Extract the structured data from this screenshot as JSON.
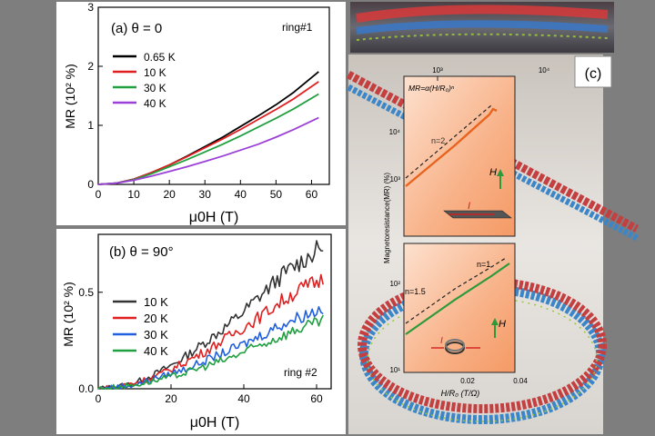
{
  "panel_a": {
    "label": "(a) θ = 0",
    "tag": "ring#1",
    "chart_data": {
      "type": "line",
      "xlabel": "μ0H (T)",
      "ylabel": "MR (10² %)",
      "xlim": [
        0,
        65
      ],
      "ylim": [
        0,
        3
      ],
      "x_ticks": [
        "0",
        "10",
        "20",
        "30",
        "40",
        "50",
        "60"
      ],
      "y_ticks": [
        "0",
        "1",
        "2",
        "3"
      ],
      "legend_position": "top-left",
      "series": [
        {
          "name": "0.65 K",
          "color": "#000000",
          "x": [
            0,
            5,
            10,
            15,
            20,
            25,
            30,
            35,
            40,
            45,
            50,
            55,
            62
          ],
          "y": [
            0,
            0.02,
            0.09,
            0.2,
            0.33,
            0.48,
            0.64,
            0.8,
            0.98,
            1.16,
            1.35,
            1.56,
            1.91
          ]
        },
        {
          "name": "10 K",
          "color": "#e02020",
          "x": [
            0,
            5,
            10,
            15,
            20,
            25,
            30,
            35,
            40,
            45,
            50,
            55,
            62
          ],
          "y": [
            0,
            0.02,
            0.09,
            0.2,
            0.33,
            0.47,
            0.62,
            0.77,
            0.93,
            1.1,
            1.27,
            1.45,
            1.74
          ]
        },
        {
          "name": "30 K",
          "color": "#20a040",
          "x": [
            0,
            5,
            10,
            15,
            20,
            25,
            30,
            35,
            40,
            45,
            50,
            55,
            62
          ],
          "y": [
            0,
            0.02,
            0.08,
            0.18,
            0.3,
            0.42,
            0.55,
            0.68,
            0.82,
            0.97,
            1.12,
            1.28,
            1.53
          ]
        },
        {
          "name": "40 K",
          "color": "#9b40d8",
          "x": [
            0,
            5,
            10,
            15,
            20,
            25,
            30,
            35,
            40,
            45,
            50,
            55,
            62
          ],
          "y": [
            0,
            0.02,
            0.07,
            0.14,
            0.22,
            0.3,
            0.39,
            0.48,
            0.58,
            0.68,
            0.8,
            0.93,
            1.13
          ]
        }
      ]
    }
  },
  "panel_b": {
    "label": "(b) θ = 90°",
    "tag": "ring #2",
    "chart_data": {
      "type": "line",
      "xlabel": "μ0H (T)",
      "ylabel": "MR (10² %)",
      "xlim": [
        0,
        64
      ],
      "ylim": [
        0,
        0.8
      ],
      "x_ticks": [
        "0",
        "20",
        "40",
        "60"
      ],
      "y_ticks": [
        "0.0",
        "0.5"
      ],
      "legend_position": "left",
      "series": [
        {
          "name": "10 K",
          "color": "#333333",
          "x": [
            0,
            5,
            10,
            15,
            20,
            25,
            30,
            35,
            40,
            45,
            50,
            55,
            62
          ],
          "y": [
            0,
            0.01,
            0.03,
            0.07,
            0.12,
            0.18,
            0.25,
            0.32,
            0.4,
            0.49,
            0.58,
            0.65,
            0.74
          ]
        },
        {
          "name": "20 K",
          "color": "#e02020",
          "x": [
            0,
            5,
            10,
            15,
            20,
            25,
            30,
            35,
            40,
            45,
            50,
            55,
            62
          ],
          "y": [
            0,
            0.01,
            0.03,
            0.06,
            0.1,
            0.15,
            0.2,
            0.26,
            0.32,
            0.38,
            0.45,
            0.51,
            0.57
          ]
        },
        {
          "name": "30 K",
          "color": "#2060e0",
          "x": [
            0,
            5,
            10,
            15,
            20,
            25,
            30,
            35,
            40,
            45,
            50,
            55,
            62
          ],
          "y": [
            0,
            0.01,
            0.02,
            0.05,
            0.08,
            0.11,
            0.15,
            0.19,
            0.23,
            0.28,
            0.33,
            0.37,
            0.42
          ]
        },
        {
          "name": "40 K",
          "color": "#20a040",
          "x": [
            0,
            5,
            10,
            15,
            20,
            25,
            30,
            35,
            40,
            45,
            50,
            55,
            62
          ],
          "y": [
            0,
            0.01,
            0.02,
            0.04,
            0.06,
            0.09,
            0.12,
            0.15,
            0.19,
            0.23,
            0.27,
            0.31,
            0.35
          ]
        }
      ]
    }
  },
  "panel_c": {
    "label": "(c)",
    "ylabel": "Magnetoresistance(MR) (%)",
    "top": {
      "formula": "MR=α(H/R₀)ⁿ",
      "top_ticks": [
        "10³",
        "10⁴"
      ],
      "y_ticks": [
        "10⁴",
        "10³"
      ],
      "fit_label": "n=2",
      "current_label": "I",
      "field_label": "H"
    },
    "bottom": {
      "fit_label_a": "n=1",
      "fit_label_b": "n=1.5",
      "y_ticks": [
        "10²",
        "10¹"
      ],
      "x_ticks": [
        "0.02",
        "0.04"
      ],
      "xlabel": "H/R₀ (T/Ω)",
      "current_label": "I",
      "field_label": "H"
    }
  },
  "colors": {
    "background": "#7e7e7e",
    "panel_c_fill": "#f7a779",
    "fit_line": "#e8641e",
    "fit_line_green": "#2d9a3a"
  }
}
